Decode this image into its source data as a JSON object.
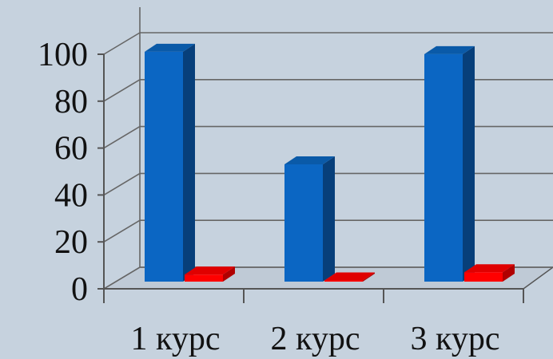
{
  "chart_data": {
    "type": "bar",
    "categories": [
      "1 курс",
      "2 курс",
      "3 курс"
    ],
    "series": [
      {
        "values": [
          98,
          50,
          97
        ],
        "color": "#0b66c3"
      },
      {
        "values": [
          3,
          0.5,
          4
        ],
        "color": "#ff0000"
      }
    ],
    "ylim": [
      0,
      100
    ],
    "yticks": [
      "0",
      "20",
      "40",
      "60",
      "80",
      "100"
    ],
    "grid": true,
    "style": "3d-column"
  }
}
